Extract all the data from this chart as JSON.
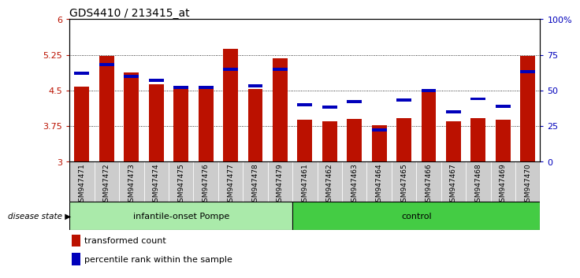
{
  "title": "GDS4410 / 213415_at",
  "samples": [
    "GSM947471",
    "GSM947472",
    "GSM947473",
    "GSM947474",
    "GSM947475",
    "GSM947476",
    "GSM947477",
    "GSM947478",
    "GSM947479",
    "GSM947461",
    "GSM947462",
    "GSM947463",
    "GSM947464",
    "GSM947465",
    "GSM947466",
    "GSM947467",
    "GSM947468",
    "GSM947469",
    "GSM947470"
  ],
  "red_values": [
    4.58,
    5.22,
    4.87,
    4.62,
    4.52,
    4.52,
    5.37,
    4.52,
    5.17,
    3.88,
    3.85,
    3.9,
    3.77,
    3.92,
    4.5,
    3.84,
    3.92,
    3.88,
    5.23
  ],
  "blue_percentiles": [
    62,
    68,
    60,
    57,
    52,
    52,
    65,
    53,
    65,
    40,
    38,
    42,
    22,
    43,
    50,
    35,
    44,
    39,
    63
  ],
  "groups": [
    {
      "name": "infantile-onset Pompe",
      "start": 0,
      "end": 9
    },
    {
      "name": "control",
      "start": 9,
      "end": 19
    }
  ],
  "group_colors": [
    "#AAEAAA",
    "#44CC44"
  ],
  "ymin": 3.0,
  "ymax": 6.0,
  "yticks_left": [
    3.0,
    3.75,
    4.5,
    5.25,
    6.0
  ],
  "ytick_left_labels": [
    "3",
    "3.75",
    "4.5",
    "5.25",
    "6"
  ],
  "yticks_right": [
    0,
    25,
    50,
    75,
    100
  ],
  "ytick_right_labels": [
    "0",
    "25",
    "50",
    "75",
    "100%"
  ],
  "bar_color": "#BB1100",
  "blue_color": "#0000BB",
  "legend_red": "transformed count",
  "legend_blue": "percentile rank within the sample",
  "disease_state_label": "disease state"
}
